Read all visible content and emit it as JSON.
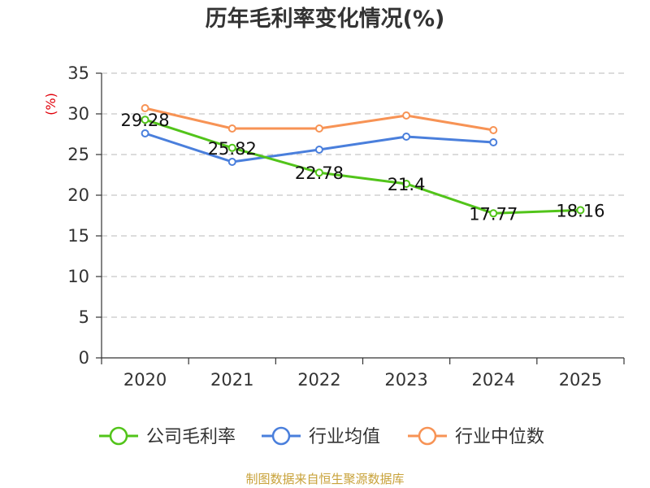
{
  "chart_data": {
    "type": "line",
    "title": "历年毛利率变化情况(%)",
    "ylabel": "(%)",
    "xlabel": "",
    "categories": [
      "2020",
      "2021",
      "2022",
      "2023",
      "2024",
      "2025"
    ],
    "ylim": [
      0,
      35
    ],
    "yticks": [
      0,
      5,
      10,
      15,
      20,
      25,
      30,
      35
    ],
    "grid": true,
    "legend_position": "bottom",
    "series": [
      {
        "name": "公司毛利率",
        "color": "#52c41a",
        "values": [
          29.28,
          25.82,
          22.78,
          21.4,
          17.77,
          18.16
        ],
        "labels": [
          "29.28",
          "25.82",
          "22.78",
          "21.4",
          "17.77",
          "18.16"
        ]
      },
      {
        "name": "行业均值",
        "color": "#4a7fdc",
        "values": [
          27.6,
          24.1,
          25.6,
          27.2,
          26.5,
          null
        ]
      },
      {
        "name": "行业中位数",
        "color": "#f79355",
        "values": [
          30.7,
          28.2,
          28.2,
          29.8,
          28.0,
          null
        ]
      }
    ]
  },
  "source": "制图数据来自恒生聚源数据库"
}
